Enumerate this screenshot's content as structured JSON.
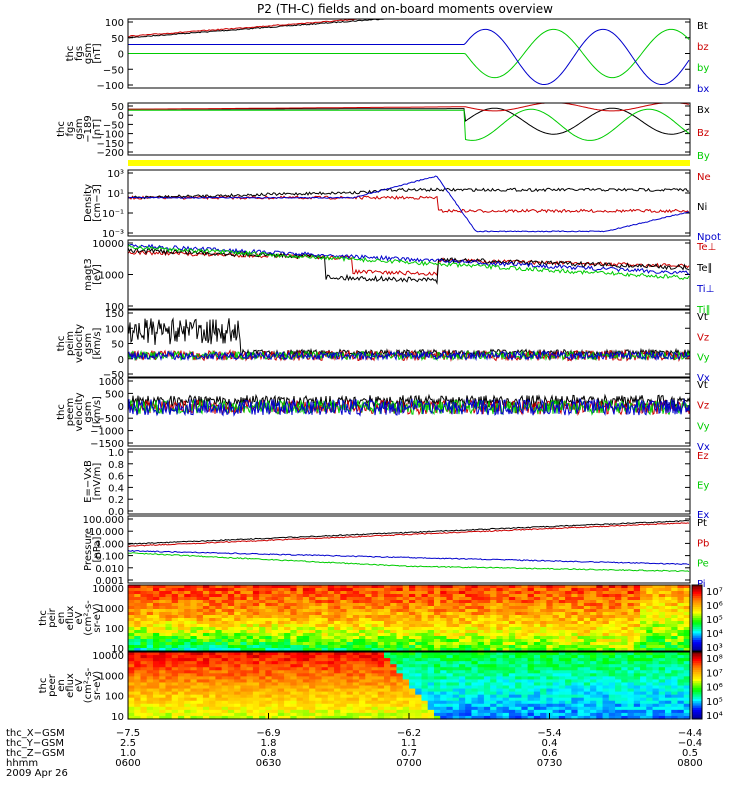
{
  "title": "P2 (TH-C) fields and on-board moments overview",
  "colors": {
    "black": "#000000",
    "red": "#cc0000",
    "green": "#00cc00",
    "blue": "#0000cc",
    "yellow": "#ffff00"
  },
  "chart_data": [
    {
      "type": "line",
      "ylabel": [
        "thc",
        "fgs",
        "gsm",
        "[nT]"
      ],
      "yticks": [
        "100",
        "50",
        "0",
        "−50",
        "−100"
      ],
      "ylim": [
        -100,
        100
      ],
      "series": [
        {
          "name": "Bt",
          "color": "#000000",
          "desc": "rises 45 to >100"
        },
        {
          "name": "bz",
          "color": "#cc0000"
        },
        {
          "name": "by",
          "color": "#00cc00"
        },
        {
          "name": "bx",
          "color": "#0000cc"
        }
      ]
    },
    {
      "type": "line",
      "ylabel": [
        "thc",
        "fgs",
        "gsm",
        "−189",
        "[nT]"
      ],
      "yticks": [
        "50",
        "0",
        "−50",
        "−100",
        "−150",
        "−200"
      ],
      "ylim": [
        -225,
        60
      ],
      "series": [
        {
          "name": "Bx",
          "color": "#000000"
        },
        {
          "name": "Bz",
          "color": "#cc0000"
        },
        {
          "name": "By",
          "color": "#00cc00"
        }
      ]
    },
    {
      "type": "line",
      "ylabel": [
        "Density",
        "[cm−3]"
      ],
      "yticks": [
        "10³",
        "10¹",
        "10⁻¹",
        "10⁻³"
      ],
      "log": true,
      "series": [
        {
          "name": "Ne",
          "color": "#cc0000"
        },
        {
          "name": "Ni",
          "color": "#000000"
        },
        {
          "name": "Npot",
          "color": "#0000cc"
        }
      ]
    },
    {
      "type": "line",
      "ylabel": [
        "magt3",
        "[eV]"
      ],
      "yticks": [
        "10000",
        "1000",
        "100"
      ],
      "log": true,
      "series": [
        {
          "name": "Te⊥",
          "color": "#cc0000"
        },
        {
          "name": "Te∥",
          "color": "#000000"
        },
        {
          "name": "Ti⊥",
          "color": "#0000cc"
        },
        {
          "name": "Ti∥",
          "color": "#00cc00"
        }
      ]
    },
    {
      "type": "line",
      "ylabel": [
        "thc",
        "peim",
        "velocity",
        "gsm",
        "[km/s]"
      ],
      "yticks": [
        "150",
        "100",
        "50",
        "0",
        "−50"
      ],
      "ylim": [
        -75,
        160
      ],
      "series": [
        {
          "name": "Vt",
          "color": "#000000"
        },
        {
          "name": "Vz",
          "color": "#cc0000"
        },
        {
          "name": "Vy",
          "color": "#00cc00"
        },
        {
          "name": "Vx",
          "color": "#0000cc"
        }
      ]
    },
    {
      "type": "line",
      "ylabel": [
        "thc",
        "peem",
        "velocity",
        "gsm",
        "[km/s]"
      ],
      "yticks": [
        "1000",
        "500",
        "0",
        "−500",
        "−1000",
        "−1500"
      ],
      "ylim": [
        -1600,
        1100
      ],
      "series": [
        {
          "name": "Vt",
          "color": "#000000"
        },
        {
          "name": "Vz",
          "color": "#cc0000"
        },
        {
          "name": "Vy",
          "color": "#00cc00"
        },
        {
          "name": "Vx",
          "color": "#0000cc"
        }
      ]
    },
    {
      "type": "line",
      "ylabel": [
        "E=−VxB",
        "[mV/m]"
      ],
      "yticks": [
        "1.0",
        "0.8",
        "0.6",
        "0.4",
        "0.2",
        "0.0"
      ],
      "ylim": [
        0,
        1
      ],
      "series": [
        {
          "name": "Ez",
          "color": "#cc0000"
        },
        {
          "name": "Ey",
          "color": "#00cc00"
        },
        {
          "name": "Ex",
          "color": "#0000cc"
        }
      ]
    },
    {
      "type": "line",
      "ylabel": [
        "Pressure",
        "[nPa]"
      ],
      "yticks": [
        "100.000",
        "10.000",
        "1.000",
        "0.100",
        "0.010",
        "0.001"
      ],
      "log": true,
      "series": [
        {
          "name": "Pt",
          "color": "#000000"
        },
        {
          "name": "Pb",
          "color": "#cc0000"
        },
        {
          "name": "Pe",
          "color": "#00cc00"
        },
        {
          "name": "Pi",
          "color": "#0000cc"
        }
      ]
    },
    {
      "type": "heatmap",
      "ylabel": [
        "thc",
        "peir",
        "en",
        "eflux",
        "eV",
        "(cm²-s-",
        "sr-eV)"
      ],
      "yticks": [
        "10000",
        "1000",
        "100",
        "10"
      ],
      "colorbar": [
        "10⁷",
        "10⁶",
        "10⁵",
        "10⁴",
        "10³"
      ]
    },
    {
      "type": "heatmap",
      "ylabel": [
        "thc",
        "peer",
        "en",
        "eflux",
        "eV",
        "(cm²-s-",
        "sr-eV)"
      ],
      "yticks": [
        "10000",
        "1000",
        "100",
        "10"
      ],
      "colorbar": [
        "10⁸",
        "10⁷",
        "10⁶",
        "10⁵",
        "10⁴"
      ]
    }
  ],
  "x_axis": {
    "row_labels": [
      "thc_X−GSM",
      "thc_Y−GSM",
      "thc_Z−GSM",
      "hhmm",
      "2009 Apr 26"
    ],
    "columns": [
      [
        "−7.5",
        "2.5",
        "1.0",
        "0600"
      ],
      [
        "−6.9",
        "1.8",
        "0.8",
        "0630"
      ],
      [
        "−6.2",
        "1.1",
        "0.7",
        "0700"
      ],
      [
        "−5.4",
        "0.4",
        "0.6",
        "0730"
      ],
      [
        "−4.4",
        "−0.4",
        "0.5",
        "0800"
      ]
    ]
  }
}
